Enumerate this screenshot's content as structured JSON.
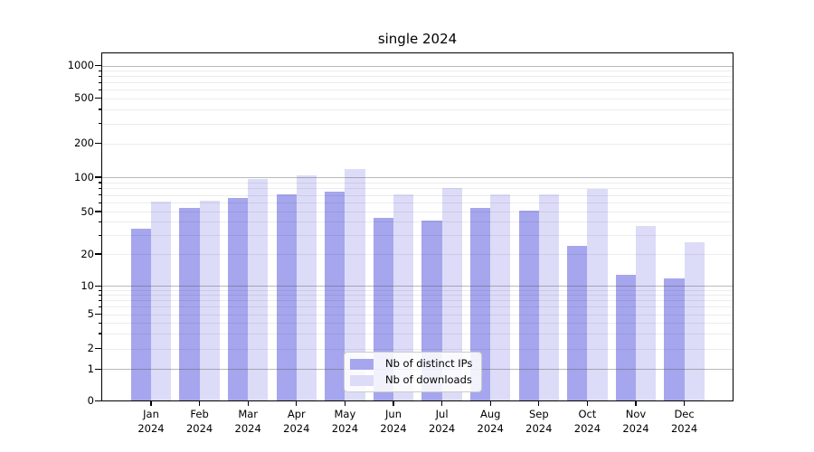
{
  "title": "single 2024",
  "colors": {
    "distinct_ips": "#a6a6ee",
    "downloads": "#dcdcf8",
    "grid_major": "#c3c3c3",
    "grid_minor": "#ebebeb",
    "axis": "#000000",
    "legend_border": "#cbcbcb",
    "background": "#ffffff"
  },
  "chart_data": {
    "type": "bar",
    "title": "single 2024",
    "categories": [
      "Jan 2024",
      "Feb 2024",
      "Mar 2024",
      "Apr 2024",
      "May 2024",
      "Jun 2024",
      "Jul 2024",
      "Aug 2024",
      "Sep 2024",
      "Oct 2024",
      "Nov 2024",
      "Dec 2024"
    ],
    "series": [
      {
        "name": "Nb of distinct IPs",
        "color": "#a6a6ee",
        "values": [
          35,
          54,
          67,
          72,
          76,
          44,
          42,
          54,
          52,
          24,
          13,
          12
        ]
      },
      {
        "name": "Nb of downloads",
        "color": "#dcdcf8",
        "values": [
          62,
          63,
          97,
          106,
          120,
          72,
          81,
          71,
          72,
          80,
          37,
          26
        ]
      }
    ],
    "xlabel": "",
    "ylabel": "",
    "yscale": "symlog",
    "ytick_values": [
      0,
      1,
      2,
      5,
      10,
      20,
      50,
      100,
      200,
      500,
      1000
    ],
    "ytick_labels": [
      "0",
      "1",
      "2",
      "5",
      "10",
      "20",
      "50",
      "100",
      "200",
      "500",
      "1000"
    ],
    "ylim": [
      0,
      1400
    ],
    "grid": true,
    "grid_major_at": [
      1,
      10,
      100,
      1000
    ],
    "legend_position": "lower center"
  },
  "legend": {
    "items": [
      {
        "label": "Nb of distinct IPs",
        "color": "#a6a6ee"
      },
      {
        "label": "Nb of downloads",
        "color": "#dcdcf8"
      }
    ]
  }
}
